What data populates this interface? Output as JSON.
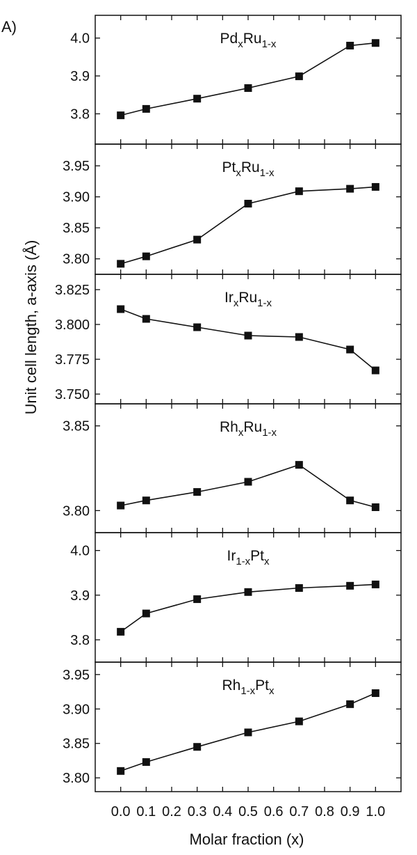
{
  "panel_label": "A)",
  "chart_data": [
    {
      "type": "line",
      "series": [
        {
          "name": "Pd_x Ru_1-x",
          "values": [
            3.796,
            3.813,
            3.84,
            3.868,
            3.899,
            3.98,
            3.987
          ]
        }
      ],
      "x": [
        0.0,
        0.1,
        0.3,
        0.5,
        0.7,
        0.9,
        1.0
      ],
      "ylim": [
        3.72,
        4.06
      ],
      "yticks": [
        3.8,
        3.9,
        4.0
      ],
      "ytick_labels": [
        "3.8",
        "3.9",
        "4.0"
      ],
      "label_parts": [
        {
          "t": "Pd",
          "s": false
        },
        {
          "t": "x",
          "s": true
        },
        {
          "t": "Ru",
          "s": false
        },
        {
          "t": "1-x",
          "s": true
        }
      ]
    },
    {
      "type": "line",
      "series": [
        {
          "name": "Pt_x Ru_1-x",
          "values": [
            3.792,
            3.804,
            3.831,
            3.889,
            3.909,
            3.913,
            3.916
          ]
        }
      ],
      "x": [
        0.0,
        0.1,
        0.3,
        0.5,
        0.7,
        0.9,
        1.0
      ],
      "ylim": [
        3.775,
        3.985
      ],
      "yticks": [
        3.8,
        3.85,
        3.9,
        3.95
      ],
      "ytick_labels": [
        "3.80",
        "3.85",
        "3.90",
        "3.95"
      ],
      "label_parts": [
        {
          "t": "Pt",
          "s": false
        },
        {
          "t": "x",
          "s": true
        },
        {
          "t": "Ru",
          "s": false
        },
        {
          "t": "1-x",
          "s": true
        }
      ]
    },
    {
      "type": "line",
      "series": [
        {
          "name": "Ir_x Ru_1-x",
          "values": [
            3.811,
            3.804,
            3.798,
            3.792,
            3.791,
            3.782,
            3.767
          ]
        }
      ],
      "x": [
        0.0,
        0.1,
        0.3,
        0.5,
        0.7,
        0.9,
        1.0
      ],
      "ylim": [
        3.743,
        3.836
      ],
      "yticks": [
        3.75,
        3.775,
        3.8,
        3.825
      ],
      "ytick_labels": [
        "3.750",
        "3.775",
        "3.800",
        "3.825"
      ],
      "label_parts": [
        {
          "t": "Ir",
          "s": false
        },
        {
          "t": "x",
          "s": true
        },
        {
          "t": "Ru",
          "s": false
        },
        {
          "t": "1-x",
          "s": true
        }
      ]
    },
    {
      "type": "line",
      "series": [
        {
          "name": "Rh_x Ru_1-x",
          "values": [
            3.803,
            3.806,
            3.811,
            3.817,
            3.827,
            3.806,
            3.802
          ]
        }
      ],
      "x": [
        0.0,
        0.1,
        0.3,
        0.5,
        0.7,
        0.9,
        1.0
      ],
      "ylim": [
        3.787,
        3.863
      ],
      "yticks": [
        3.8,
        3.85
      ],
      "ytick_labels": [
        "3.80",
        "3.85"
      ],
      "label_parts": [
        {
          "t": "Rh",
          "s": false
        },
        {
          "t": "x",
          "s": true
        },
        {
          "t": "Ru",
          "s": false
        },
        {
          "t": "1-x",
          "s": true
        }
      ]
    },
    {
      "type": "line",
      "series": [
        {
          "name": "Ir_1-x Pt_x",
          "values": [
            3.818,
            3.859,
            3.891,
            3.907,
            3.916,
            3.921,
            3.924
          ]
        }
      ],
      "x": [
        0.0,
        0.1,
        0.3,
        0.5,
        0.7,
        0.9,
        1.0
      ],
      "ylim": [
        3.75,
        4.04
      ],
      "yticks": [
        3.8,
        3.9,
        4.0
      ],
      "ytick_labels": [
        "3.8",
        "3.9",
        "4.0"
      ],
      "label_parts": [
        {
          "t": "Ir",
          "s": false
        },
        {
          "t": "1-x",
          "s": true
        },
        {
          "t": "Pt",
          "s": false
        },
        {
          "t": "x",
          "s": true
        }
      ]
    },
    {
      "type": "line",
      "series": [
        {
          "name": "Rh_1-x Pt_x",
          "values": [
            3.81,
            3.823,
            3.845,
            3.866,
            3.882,
            3.907,
            3.923
          ]
        }
      ],
      "x": [
        0.0,
        0.1,
        0.3,
        0.5,
        0.7,
        0.9,
        1.0
      ],
      "ylim": [
        3.78,
        3.968
      ],
      "yticks": [
        3.8,
        3.85,
        3.9,
        3.95
      ],
      "ytick_labels": [
        "3.80",
        "3.85",
        "3.90",
        "3.95"
      ],
      "label_parts": [
        {
          "t": "Rh",
          "s": false
        },
        {
          "t": "1-x",
          "s": true
        },
        {
          "t": "Pt",
          "s": false
        },
        {
          "t": "x",
          "s": true
        }
      ]
    }
  ],
  "x_axis": {
    "label": "Molar fraction (x)",
    "xlim": [
      -0.1,
      1.1
    ],
    "ticks": [
      0.0,
      0.1,
      0.2,
      0.3,
      0.4,
      0.5,
      0.6,
      0.7,
      0.8,
      0.9,
      1.0
    ],
    "tick_labels": [
      "0.0",
      "0.1",
      "0.2",
      "0.3",
      "0.4",
      "0.5",
      "0.6",
      "0.7",
      "0.8",
      "0.9",
      "1.0"
    ]
  },
  "y_axis": {
    "label": "Unit cell length, a-axis (Å)"
  }
}
